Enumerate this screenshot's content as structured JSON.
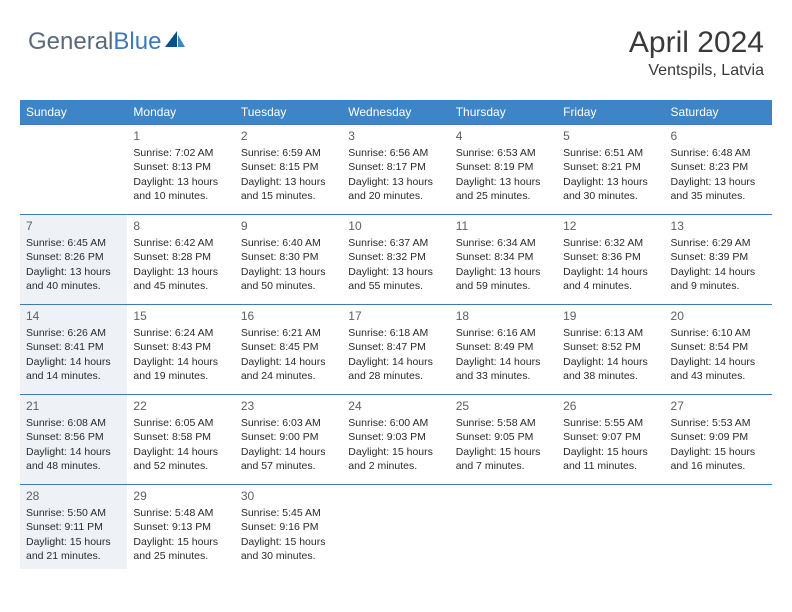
{
  "logo": {
    "text_gray": "General",
    "text_blue": "Blue"
  },
  "header": {
    "month": "April 2024",
    "location": "Ventspils, Latvia"
  },
  "colors": {
    "header_bg": "#3d85c6",
    "header_text": "#ffffff",
    "border": "#3d7bb8",
    "dim_bg": "#eef2f6",
    "body_text": "#2a2a2a",
    "daynum_text": "#606060",
    "title_text": "#3a3a3a",
    "logo_gray": "#5a6a78",
    "logo_blue": "#3d7bb8"
  },
  "dayHeaders": [
    "Sunday",
    "Monday",
    "Tuesday",
    "Wednesday",
    "Thursday",
    "Friday",
    "Saturday"
  ],
  "weeks": [
    [
      {
        "num": "",
        "sunrise": "",
        "sunset": "",
        "daylight": "",
        "dim": false
      },
      {
        "num": "1",
        "sunrise": "Sunrise: 7:02 AM",
        "sunset": "Sunset: 8:13 PM",
        "daylight": "Daylight: 13 hours and 10 minutes.",
        "dim": false
      },
      {
        "num": "2",
        "sunrise": "Sunrise: 6:59 AM",
        "sunset": "Sunset: 8:15 PM",
        "daylight": "Daylight: 13 hours and 15 minutes.",
        "dim": false
      },
      {
        "num": "3",
        "sunrise": "Sunrise: 6:56 AM",
        "sunset": "Sunset: 8:17 PM",
        "daylight": "Daylight: 13 hours and 20 minutes.",
        "dim": false
      },
      {
        "num": "4",
        "sunrise": "Sunrise: 6:53 AM",
        "sunset": "Sunset: 8:19 PM",
        "daylight": "Daylight: 13 hours and 25 minutes.",
        "dim": false
      },
      {
        "num": "5",
        "sunrise": "Sunrise: 6:51 AM",
        "sunset": "Sunset: 8:21 PM",
        "daylight": "Daylight: 13 hours and 30 minutes.",
        "dim": false
      },
      {
        "num": "6",
        "sunrise": "Sunrise: 6:48 AM",
        "sunset": "Sunset: 8:23 PM",
        "daylight": "Daylight: 13 hours and 35 minutes.",
        "dim": false
      }
    ],
    [
      {
        "num": "7",
        "sunrise": "Sunrise: 6:45 AM",
        "sunset": "Sunset: 8:26 PM",
        "daylight": "Daylight: 13 hours and 40 minutes.",
        "dim": true
      },
      {
        "num": "8",
        "sunrise": "Sunrise: 6:42 AM",
        "sunset": "Sunset: 8:28 PM",
        "daylight": "Daylight: 13 hours and 45 minutes.",
        "dim": false
      },
      {
        "num": "9",
        "sunrise": "Sunrise: 6:40 AM",
        "sunset": "Sunset: 8:30 PM",
        "daylight": "Daylight: 13 hours and 50 minutes.",
        "dim": false
      },
      {
        "num": "10",
        "sunrise": "Sunrise: 6:37 AM",
        "sunset": "Sunset: 8:32 PM",
        "daylight": "Daylight: 13 hours and 55 minutes.",
        "dim": false
      },
      {
        "num": "11",
        "sunrise": "Sunrise: 6:34 AM",
        "sunset": "Sunset: 8:34 PM",
        "daylight": "Daylight: 13 hours and 59 minutes.",
        "dim": false
      },
      {
        "num": "12",
        "sunrise": "Sunrise: 6:32 AM",
        "sunset": "Sunset: 8:36 PM",
        "daylight": "Daylight: 14 hours and 4 minutes.",
        "dim": false
      },
      {
        "num": "13",
        "sunrise": "Sunrise: 6:29 AM",
        "sunset": "Sunset: 8:39 PM",
        "daylight": "Daylight: 14 hours and 9 minutes.",
        "dim": false
      }
    ],
    [
      {
        "num": "14",
        "sunrise": "Sunrise: 6:26 AM",
        "sunset": "Sunset: 8:41 PM",
        "daylight": "Daylight: 14 hours and 14 minutes.",
        "dim": true
      },
      {
        "num": "15",
        "sunrise": "Sunrise: 6:24 AM",
        "sunset": "Sunset: 8:43 PM",
        "daylight": "Daylight: 14 hours and 19 minutes.",
        "dim": false
      },
      {
        "num": "16",
        "sunrise": "Sunrise: 6:21 AM",
        "sunset": "Sunset: 8:45 PM",
        "daylight": "Daylight: 14 hours and 24 minutes.",
        "dim": false
      },
      {
        "num": "17",
        "sunrise": "Sunrise: 6:18 AM",
        "sunset": "Sunset: 8:47 PM",
        "daylight": "Daylight: 14 hours and 28 minutes.",
        "dim": false
      },
      {
        "num": "18",
        "sunrise": "Sunrise: 6:16 AM",
        "sunset": "Sunset: 8:49 PM",
        "daylight": "Daylight: 14 hours and 33 minutes.",
        "dim": false
      },
      {
        "num": "19",
        "sunrise": "Sunrise: 6:13 AM",
        "sunset": "Sunset: 8:52 PM",
        "daylight": "Daylight: 14 hours and 38 minutes.",
        "dim": false
      },
      {
        "num": "20",
        "sunrise": "Sunrise: 6:10 AM",
        "sunset": "Sunset: 8:54 PM",
        "daylight": "Daylight: 14 hours and 43 minutes.",
        "dim": false
      }
    ],
    [
      {
        "num": "21",
        "sunrise": "Sunrise: 6:08 AM",
        "sunset": "Sunset: 8:56 PM",
        "daylight": "Daylight: 14 hours and 48 minutes.",
        "dim": true
      },
      {
        "num": "22",
        "sunrise": "Sunrise: 6:05 AM",
        "sunset": "Sunset: 8:58 PM",
        "daylight": "Daylight: 14 hours and 52 minutes.",
        "dim": false
      },
      {
        "num": "23",
        "sunrise": "Sunrise: 6:03 AM",
        "sunset": "Sunset: 9:00 PM",
        "daylight": "Daylight: 14 hours and 57 minutes.",
        "dim": false
      },
      {
        "num": "24",
        "sunrise": "Sunrise: 6:00 AM",
        "sunset": "Sunset: 9:03 PM",
        "daylight": "Daylight: 15 hours and 2 minutes.",
        "dim": false
      },
      {
        "num": "25",
        "sunrise": "Sunrise: 5:58 AM",
        "sunset": "Sunset: 9:05 PM",
        "daylight": "Daylight: 15 hours and 7 minutes.",
        "dim": false
      },
      {
        "num": "26",
        "sunrise": "Sunrise: 5:55 AM",
        "sunset": "Sunset: 9:07 PM",
        "daylight": "Daylight: 15 hours and 11 minutes.",
        "dim": false
      },
      {
        "num": "27",
        "sunrise": "Sunrise: 5:53 AM",
        "sunset": "Sunset: 9:09 PM",
        "daylight": "Daylight: 15 hours and 16 minutes.",
        "dim": false
      }
    ],
    [
      {
        "num": "28",
        "sunrise": "Sunrise: 5:50 AM",
        "sunset": "Sunset: 9:11 PM",
        "daylight": "Daylight: 15 hours and 21 minutes.",
        "dim": true
      },
      {
        "num": "29",
        "sunrise": "Sunrise: 5:48 AM",
        "sunset": "Sunset: 9:13 PM",
        "daylight": "Daylight: 15 hours and 25 minutes.",
        "dim": false
      },
      {
        "num": "30",
        "sunrise": "Sunrise: 5:45 AM",
        "sunset": "Sunset: 9:16 PM",
        "daylight": "Daylight: 15 hours and 30 minutes.",
        "dim": false
      },
      {
        "num": "",
        "sunrise": "",
        "sunset": "",
        "daylight": "",
        "dim": false
      },
      {
        "num": "",
        "sunrise": "",
        "sunset": "",
        "daylight": "",
        "dim": false
      },
      {
        "num": "",
        "sunrise": "",
        "sunset": "",
        "daylight": "",
        "dim": false
      },
      {
        "num": "",
        "sunrise": "",
        "sunset": "",
        "daylight": "",
        "dim": false
      }
    ]
  ]
}
